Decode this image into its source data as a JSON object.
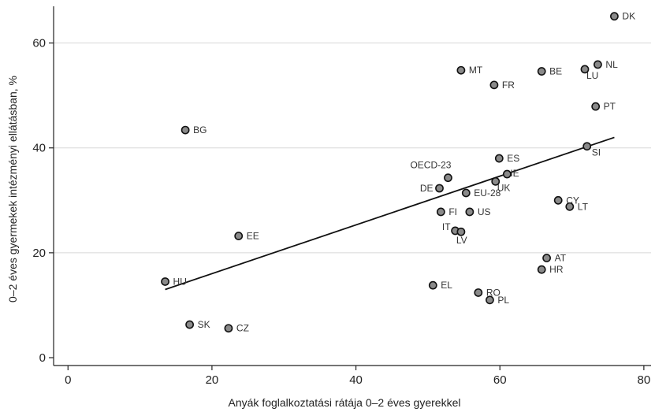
{
  "chart_data": {
    "type": "scatter",
    "title": "",
    "xlabel": "Anyák foglalkoztatási rátája 0–2 éves gyerekkel",
    "ylabel": "0–2 éves gyermekek intézményi ellátásban, %",
    "xlim": [
      -2,
      81
    ],
    "ylim": [
      -1.5,
      67
    ],
    "xticks": [
      0,
      20,
      40,
      60,
      80
    ],
    "yticks": [
      0,
      20,
      40,
      60
    ],
    "grid": "horizontal",
    "points": [
      {
        "label": "DK",
        "x": 75.9,
        "y": 65.1
      },
      {
        "label": "NL",
        "x": 73.6,
        "y": 55.9
      },
      {
        "label": "LU",
        "x": 71.8,
        "y": 55.0
      },
      {
        "label": "BE",
        "x": 65.8,
        "y": 54.6
      },
      {
        "label": "MT",
        "x": 54.6,
        "y": 54.8
      },
      {
        "label": "FR",
        "x": 59.2,
        "y": 52.0
      },
      {
        "label": "PT",
        "x": 73.3,
        "y": 47.9
      },
      {
        "label": "BG",
        "x": 16.3,
        "y": 43.4
      },
      {
        "label": "SI",
        "x": 72.1,
        "y": 40.3
      },
      {
        "label": "ES",
        "x": 59.9,
        "y": 38.0
      },
      {
        "label": "OECD-23",
        "x": 52.8,
        "y": 34.3
      },
      {
        "label": "IE",
        "x": 61.0,
        "y": 35.0
      },
      {
        "label": "UK",
        "x": 59.4,
        "y": 33.6
      },
      {
        "label": "DE",
        "x": 51.6,
        "y": 32.3
      },
      {
        "label": "EU-28",
        "x": 55.3,
        "y": 31.4
      },
      {
        "label": "CY",
        "x": 68.1,
        "y": 30.0
      },
      {
        "label": "LT",
        "x": 69.7,
        "y": 28.8
      },
      {
        "label": "FI",
        "x": 51.8,
        "y": 27.8
      },
      {
        "label": "US",
        "x": 55.8,
        "y": 27.8
      },
      {
        "label": "IT",
        "x": 53.8,
        "y": 24.2
      },
      {
        "label": "LV",
        "x": 54.6,
        "y": 24.0
      },
      {
        "label": "EE",
        "x": 23.7,
        "y": 23.2
      },
      {
        "label": "AT",
        "x": 66.5,
        "y": 19.0
      },
      {
        "label": "HR",
        "x": 65.8,
        "y": 16.8
      },
      {
        "label": "HU",
        "x": 13.5,
        "y": 14.5
      },
      {
        "label": "EL",
        "x": 50.7,
        "y": 13.8
      },
      {
        "label": "RO",
        "x": 57.0,
        "y": 12.4
      },
      {
        "label": "PL",
        "x": 58.6,
        "y": 11.0
      },
      {
        "label": "SK",
        "x": 16.9,
        "y": 6.3
      },
      {
        "label": "CZ",
        "x": 22.3,
        "y": 5.6
      }
    ],
    "trendline": {
      "x": [
        13.5,
        75.9
      ],
      "y": [
        13.0,
        42.0
      ]
    },
    "colors": {
      "point_fill": "#8a8a8a",
      "point_stroke": "#111111",
      "trend": "#111111",
      "grid": "#d8d8d8"
    }
  }
}
